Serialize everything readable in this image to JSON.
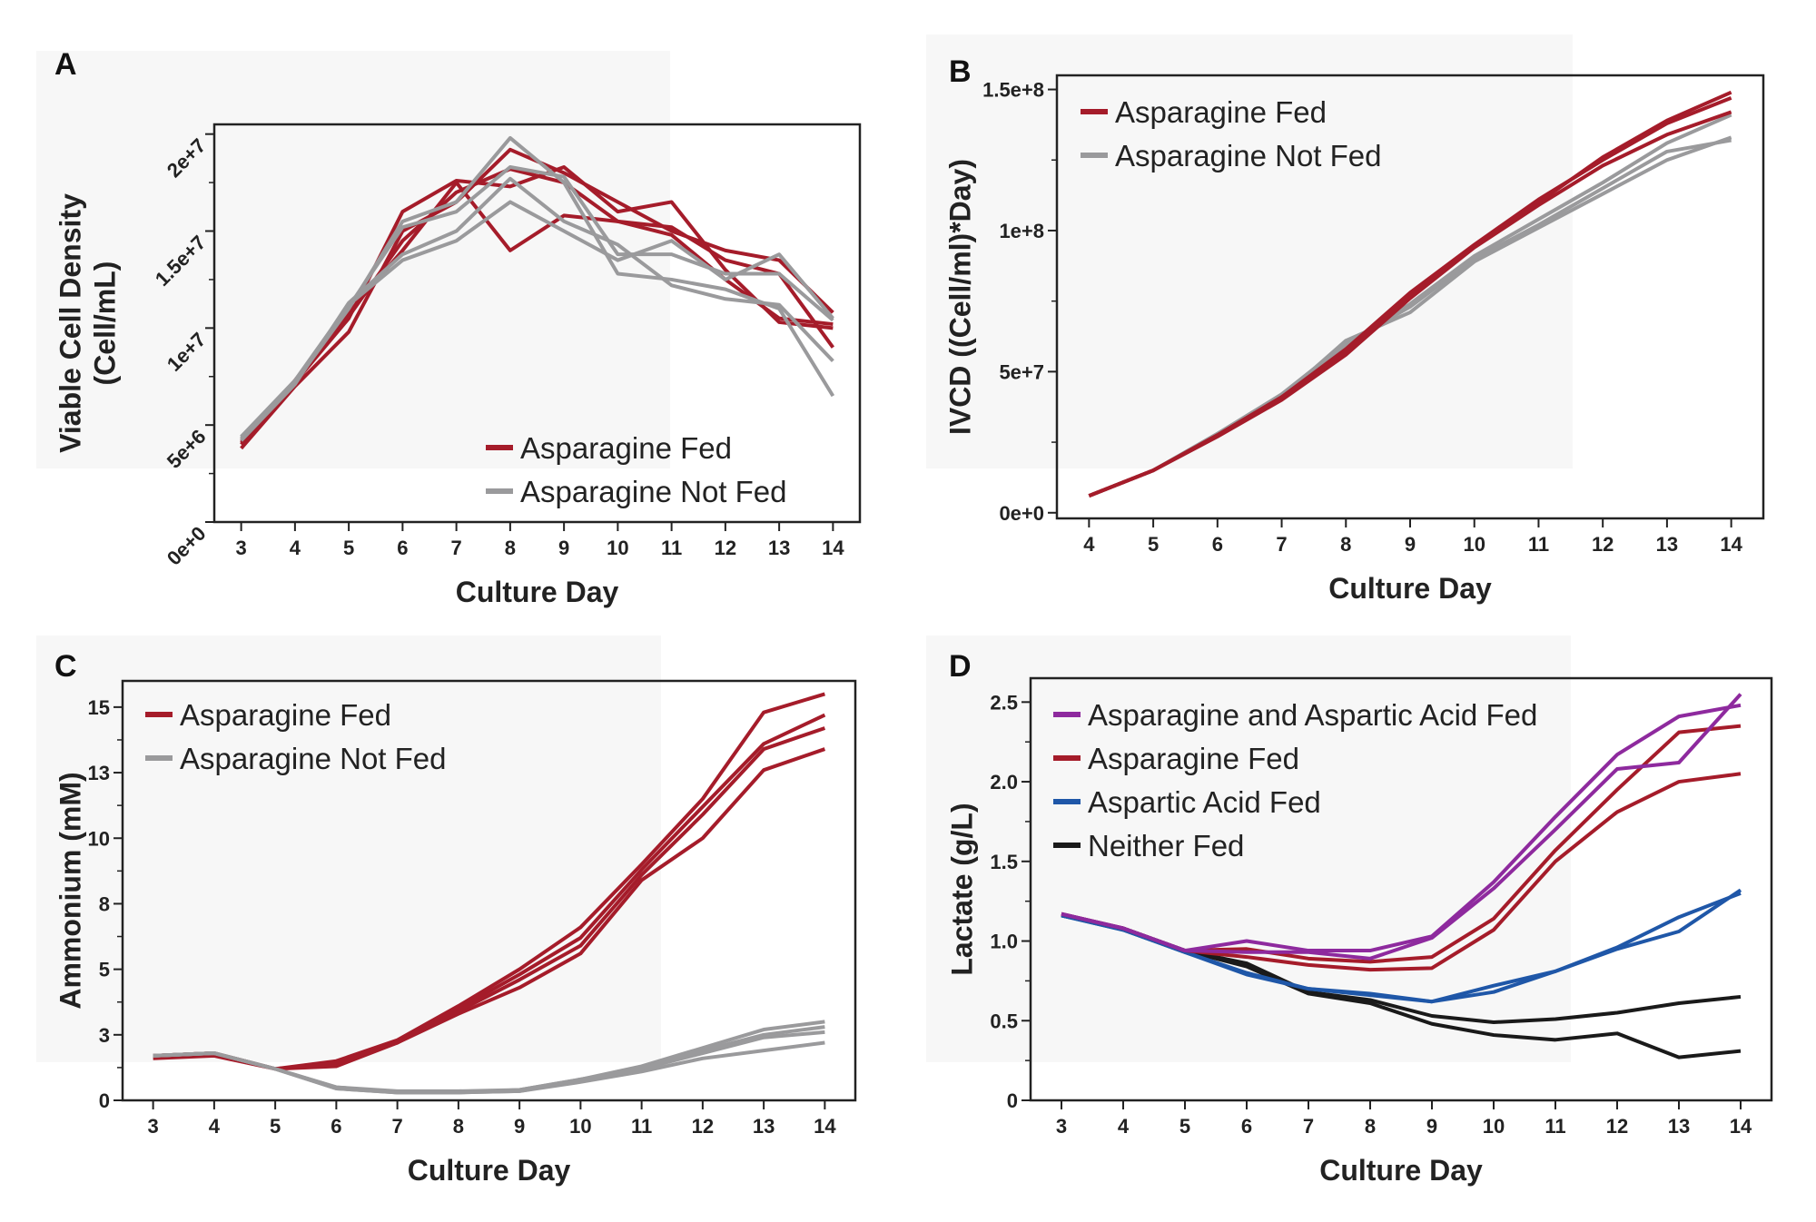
{
  "chart_data": [
    {
      "panel": "A",
      "type": "line",
      "xlabel": "Culture Day",
      "ylabel": [
        "Viable Cell Density",
        "(Cell/mL)"
      ],
      "x": [
        3,
        4,
        5,
        6,
        7,
        8,
        9,
        10,
        11,
        12,
        13,
        14
      ],
      "xlim": [
        2.5,
        14.5
      ],
      "ylim": [
        0,
        20500000
      ],
      "yticks": [
        0,
        5000000,
        10000000,
        15000000,
        20000000
      ],
      "ytick_labels": [
        "0e+0",
        "5e+6",
        "1e+7",
        "1.5e+7",
        "2e+7"
      ],
      "legend_position": "bottom-right",
      "legend": [
        {
          "name": "Asparagine Fed",
          "color": "#a51c2a"
        },
        {
          "name": "Asparagine Not Fed",
          "color": "#9a9a9c"
        }
      ],
      "series": [
        {
          "group": 0,
          "values": [
            4200000,
            7200000,
            10500000,
            16000000,
            17600000,
            17300000,
            18300000,
            16000000,
            16500000,
            13000000,
            10300000,
            10000000
          ]
        },
        {
          "group": 0,
          "values": [
            3800000,
            7000000,
            9800000,
            15000000,
            16500000,
            19200000,
            18000000,
            16500000,
            15000000,
            14000000,
            13500000,
            10800000
          ]
        },
        {
          "group": 0,
          "values": [
            4000000,
            7300000,
            10800000,
            14000000,
            17500000,
            14000000,
            15800000,
            15500000,
            15200000,
            13500000,
            12800000,
            9000000
          ]
        },
        {
          "group": 0,
          "values": [
            4100000,
            7200000,
            10600000,
            14500000,
            17000000,
            18200000,
            17500000,
            15500000,
            14800000,
            12500000,
            10500000,
            10200000
          ]
        },
        {
          "group": 1,
          "values": [
            4400000,
            7300000,
            11200000,
            13500000,
            14500000,
            16500000,
            15000000,
            13500000,
            14500000,
            12500000,
            13800000,
            10500000
          ]
        },
        {
          "group": 1,
          "values": [
            4300000,
            7200000,
            11000000,
            15500000,
            16500000,
            19800000,
            17500000,
            12800000,
            12500000,
            12000000,
            11000000,
            6500000
          ]
        },
        {
          "group": 1,
          "values": [
            4200000,
            7100000,
            11300000,
            13800000,
            15000000,
            17700000,
            15500000,
            14300000,
            12200000,
            11500000,
            11200000,
            8300000
          ]
        },
        {
          "group": 1,
          "values": [
            4300000,
            7200000,
            11100000,
            15200000,
            16000000,
            18300000,
            17800000,
            13800000,
            13800000,
            12800000,
            12800000,
            10400000
          ]
        }
      ]
    },
    {
      "panel": "B",
      "type": "line",
      "xlabel": "Culture Day",
      "ylabel": [
        "IVCD ((Cell/ml)*Day)"
      ],
      "x": [
        4,
        5,
        6,
        7,
        8,
        9,
        10,
        11,
        12,
        13,
        14
      ],
      "xlim": [
        3.5,
        14.5
      ],
      "ylim": [
        -2000000,
        155000000
      ],
      "yticks": [
        0,
        50000000,
        100000000,
        150000000
      ],
      "ytick_labels": [
        "0e+0",
        "5e+7",
        "1e+8",
        "1.5e+8"
      ],
      "legend_position": "top-left",
      "legend": [
        {
          "name": "Asparagine Fed",
          "color": "#a51c2a"
        },
        {
          "name": "Asparagine Not Fed",
          "color": "#9a9a9c"
        }
      ],
      "series": [
        {
          "group": 1,
          "values": [
            6000000,
            15000000,
            27500000,
            41000000,
            61000000,
            71000000,
            89000000,
            101000000,
            113000000,
            125000000,
            133000000
          ]
        },
        {
          "group": 1,
          "values": [
            6000000,
            15000000,
            28000000,
            42000000,
            60000000,
            73000000,
            90000000,
            102000000,
            115000000,
            128000000,
            132000000
          ]
        },
        {
          "group": 1,
          "values": [
            6000000,
            15000000,
            28000000,
            41500000,
            59000000,
            74000000,
            91000000,
            104000000,
            117000000,
            131000000,
            141000000
          ]
        },
        {
          "group": 0,
          "values": [
            6000000,
            15000000,
            27000000,
            40000000,
            56000000,
            76000000,
            94000000,
            109000000,
            123000000,
            134000000,
            142000000
          ]
        },
        {
          "group": 0,
          "values": [
            6000000,
            15000000,
            27500000,
            41000000,
            58000000,
            78000000,
            95000000,
            111000000,
            125000000,
            138000000,
            147000000
          ]
        },
        {
          "group": 0,
          "values": [
            6000000,
            15000000,
            27500000,
            41000000,
            57000000,
            77000000,
            94500000,
            110000000,
            126000000,
            139000000,
            149000000
          ]
        }
      ]
    },
    {
      "panel": "C",
      "type": "line",
      "xlabel": "Culture Day",
      "ylabel": [
        "Ammonium (mM)"
      ],
      "x": [
        3,
        4,
        5,
        6,
        7,
        8,
        9,
        10,
        11,
        12,
        13,
        14
      ],
      "xlim": [
        2.5,
        14.5
      ],
      "ylim": [
        0,
        16
      ],
      "yticks": [
        0,
        2.5,
        5,
        7.5,
        10,
        12.5,
        15
      ],
      "ytick_labels": [
        "0",
        "3",
        "5",
        "8",
        "10",
        "13",
        "15"
      ],
      "legend_position": "top-left",
      "legend": [
        {
          "name": "Asparagine Fed",
          "color": "#a51c2a"
        },
        {
          "name": "Asparagine Not Fed",
          "color": "#9a9a9c"
        }
      ],
      "series": [
        {
          "group": 0,
          "values": [
            1.7,
            1.8,
            1.2,
            1.5,
            2.3,
            3.6,
            5.0,
            6.6,
            9.0,
            11.5,
            14.8,
            15.5
          ]
        },
        {
          "group": 0,
          "values": [
            1.7,
            1.8,
            1.2,
            1.4,
            2.2,
            3.5,
            4.8,
            6.2,
            8.8,
            11.2,
            13.6,
            14.7
          ]
        },
        {
          "group": 0,
          "values": [
            1.7,
            1.8,
            1.2,
            1.4,
            2.2,
            3.4,
            4.6,
            5.9,
            8.6,
            10.9,
            13.4,
            14.2
          ]
        },
        {
          "group": 0,
          "values": [
            1.6,
            1.7,
            1.2,
            1.3,
            2.2,
            3.3,
            4.3,
            5.6,
            8.4,
            10.0,
            12.6,
            13.4
          ]
        },
        {
          "group": 1,
          "values": [
            1.7,
            1.8,
            1.2,
            0.5,
            0.35,
            0.35,
            0.4,
            0.8,
            1.3,
            2.0,
            2.7,
            3.0
          ]
        },
        {
          "group": 1,
          "values": [
            1.7,
            1.8,
            1.2,
            0.5,
            0.3,
            0.3,
            0.4,
            0.8,
            1.2,
            1.9,
            2.5,
            2.8
          ]
        },
        {
          "group": 1,
          "values": [
            1.7,
            1.8,
            1.2,
            0.45,
            0.3,
            0.3,
            0.35,
            0.75,
            1.2,
            1.8,
            2.4,
            2.6
          ]
        },
        {
          "group": 1,
          "values": [
            1.7,
            1.8,
            1.2,
            0.45,
            0.3,
            0.3,
            0.35,
            0.7,
            1.1,
            1.6,
            1.9,
            2.2
          ]
        }
      ]
    },
    {
      "panel": "D",
      "type": "line",
      "xlabel": "Culture Day",
      "ylabel": [
        "Lactate (g/L)"
      ],
      "x": [
        3,
        4,
        5,
        6,
        7,
        8,
        9,
        10,
        11,
        12,
        13,
        14
      ],
      "xlim": [
        2.5,
        14.5
      ],
      "ylim": [
        0,
        2.65
      ],
      "yticks": [
        0,
        0.5,
        1.0,
        1.5,
        2.0,
        2.5
      ],
      "ytick_labels": [
        "0",
        "0.5",
        "1.0",
        "1.5",
        "2.0",
        "2.5"
      ],
      "legend_position": "top-left",
      "legend": [
        {
          "name": "Asparagine and Aspartic Acid Fed",
          "color": "#8e2a9e"
        },
        {
          "name": "Asparagine Fed",
          "color": "#a51c2a"
        },
        {
          "name": "Aspartic Acid Fed",
          "color": "#1f57a8"
        },
        {
          "name": "Neither Fed",
          "color": "#1a1a1a"
        }
      ],
      "series": [
        {
          "group": 3,
          "values": [
            1.16,
            1.08,
            0.94,
            0.84,
            0.67,
            0.61,
            0.48,
            0.41,
            0.38,
            0.42,
            0.27,
            0.31
          ]
        },
        {
          "group": 3,
          "values": [
            1.16,
            1.08,
            0.94,
            0.86,
            0.68,
            0.63,
            0.53,
            0.49,
            0.51,
            0.55,
            0.61,
            0.65
          ]
        },
        {
          "group": 2,
          "values": [
            1.16,
            1.07,
            0.93,
            0.79,
            0.7,
            0.67,
            0.62,
            0.68,
            0.81,
            0.95,
            1.06,
            1.32
          ]
        },
        {
          "group": 2,
          "values": [
            1.16,
            1.07,
            0.93,
            0.8,
            0.7,
            0.66,
            0.62,
            0.72,
            0.81,
            0.96,
            1.15,
            1.3
          ]
        },
        {
          "group": 1,
          "values": [
            1.17,
            1.08,
            0.94,
            0.9,
            0.85,
            0.82,
            0.83,
            1.07,
            1.5,
            1.81,
            2.0,
            2.05
          ]
        },
        {
          "group": 1,
          "values": [
            1.17,
            1.08,
            0.94,
            0.95,
            0.89,
            0.87,
            0.9,
            1.14,
            1.57,
            1.95,
            2.31,
            2.35
          ]
        },
        {
          "group": 0,
          "values": [
            1.17,
            1.08,
            0.94,
            1.0,
            0.94,
            0.94,
            1.03,
            1.37,
            1.78,
            2.17,
            2.41,
            2.48
          ]
        },
        {
          "group": 0,
          "values": [
            1.17,
            1.08,
            0.94,
            0.93,
            0.93,
            0.89,
            1.02,
            1.33,
            1.7,
            2.08,
            2.12,
            2.55
          ]
        }
      ]
    }
  ]
}
